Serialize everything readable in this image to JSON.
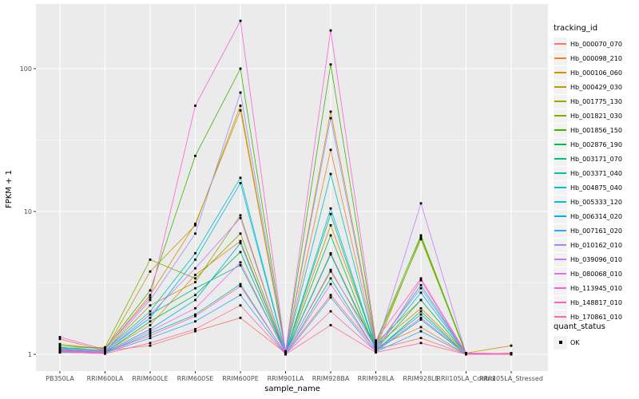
{
  "chart_data": {
    "type": "line",
    "xlabel": "sample_name",
    "ylabel": "FPKM + 1",
    "y_scale": "log10",
    "y_ticks": [
      1,
      10,
      100
    ],
    "y_minor_ticks": [
      3.162,
      31.62
    ],
    "grid": true,
    "panel_bg": "#EBEBEB",
    "grid_color": "#FFFFFF",
    "tick_label_color": "#4D4D4D",
    "point_shape": "square",
    "point_color": "#000000",
    "legend_position": "right",
    "categories": [
      "PB350LA",
      "RRIM600LA",
      "RRIM600LE",
      "RRIM600SE",
      "RRIM600PE",
      "RRIM901LA",
      "RRIM928BA",
      "RRIM928LA",
      "RRIM928LE",
      "RRII105LA_Control",
      "RRII105LA_Stressed"
    ],
    "series": [
      {
        "name": "Hb_000070_070",
        "color": "#F8766D",
        "values": [
          1.28,
          1.06,
          1.15,
          1.45,
          1.8,
          1.02,
          2.6,
          1.08,
          1.3,
          1.0,
          1.0
        ]
      },
      {
        "name": "Hb_000098_210",
        "color": "#EA8331",
        "values": [
          1.1,
          1.04,
          1.6,
          3.6,
          6.2,
          1.02,
          27.0,
          1.12,
          1.55,
          1.0,
          1.02
        ]
      },
      {
        "name": "Hb_000106_060",
        "color": "#D89000",
        "values": [
          1.18,
          1.08,
          2.6,
          8.2,
          51.0,
          1.04,
          8.0,
          1.15,
          2.1,
          1.02,
          1.15
        ]
      },
      {
        "name": "Hb_000429_030",
        "color": "#C09B00",
        "values": [
          1.12,
          1.06,
          3.8,
          8.0,
          55.0,
          1.03,
          50.0,
          1.2,
          2.4,
          1.01,
          1.0
        ]
      },
      {
        "name": "Hb_001775_130",
        "color": "#A3A500",
        "values": [
          1.08,
          1.05,
          2.2,
          3.2,
          9.4,
          1.02,
          5.1,
          1.1,
          6.6,
          1.0,
          1.0
        ]
      },
      {
        "name": "Hb_001821_030",
        "color": "#7CAE00",
        "values": [
          1.1,
          1.12,
          4.6,
          3.4,
          7.0,
          1.03,
          3.8,
          1.18,
          6.4,
          1.01,
          1.0
        ]
      },
      {
        "name": "Hb_001856_150",
        "color": "#39B600",
        "values": [
          1.15,
          1.1,
          2.8,
          24.5,
          100.0,
          1.05,
          107.0,
          1.22,
          6.8,
          1.02,
          1.01
        ]
      },
      {
        "name": "Hb_002876_190",
        "color": "#00BB4E",
        "values": [
          1.05,
          1.03,
          1.7,
          2.6,
          5.2,
          1.01,
          6.8,
          1.06,
          2.0,
          1.0,
          1.0
        ]
      },
      {
        "name": "Hb_003171_070",
        "color": "#00BF7D",
        "values": [
          1.07,
          1.04,
          1.9,
          2.9,
          4.2,
          1.02,
          9.6,
          1.08,
          2.4,
          1.01,
          1.0
        ]
      },
      {
        "name": "Hb_003371_040",
        "color": "#00C1A3",
        "values": [
          1.04,
          1.02,
          1.4,
          1.9,
          3.1,
          1.0,
          3.4,
          1.05,
          1.75,
          1.0,
          1.0
        ]
      },
      {
        "name": "Hb_004875_040",
        "color": "#00BFC4",
        "values": [
          1.12,
          1.06,
          2.0,
          5.1,
          17.2,
          1.03,
          18.3,
          1.12,
          3.05,
          1.01,
          1.0
        ]
      },
      {
        "name": "Hb_005333_120",
        "color": "#00BAE0",
        "values": [
          1.1,
          1.05,
          1.8,
          4.6,
          15.8,
          1.02,
          10.5,
          1.1,
          2.7,
          1.01,
          1.0
        ]
      },
      {
        "name": "Hb_006314_020",
        "color": "#00B0F6",
        "values": [
          1.06,
          1.03,
          1.5,
          2.4,
          6.0,
          1.01,
          5.0,
          1.07,
          1.9,
          1.0,
          1.0
        ]
      },
      {
        "name": "Hb_007161_020",
        "color": "#35A2FF",
        "values": [
          1.03,
          1.02,
          1.3,
          1.7,
          2.6,
          1.0,
          2.5,
          1.04,
          1.45,
          1.0,
          1.0
        ]
      },
      {
        "name": "Hb_010162_010",
        "color": "#9590FF",
        "values": [
          1.09,
          1.05,
          2.4,
          7.0,
          68.0,
          1.03,
          45.0,
          1.14,
          2.9,
          1.01,
          1.0
        ]
      },
      {
        "name": "Hb_039096_010",
        "color": "#C77CFF",
        "values": [
          1.08,
          1.04,
          1.9,
          4.0,
          9.0,
          1.02,
          3.9,
          1.1,
          11.4,
          1.01,
          1.0
        ]
      },
      {
        "name": "Hb_080068_010",
        "color": "#E76BF3",
        "values": [
          1.05,
          1.02,
          1.45,
          2.1,
          4.4,
          1.01,
          3.1,
          1.06,
          1.8,
          1.0,
          1.0
        ]
      },
      {
        "name": "Hb_113945_010",
        "color": "#FA62DB",
        "values": [
          1.32,
          1.08,
          2.5,
          55.0,
          216.0,
          1.04,
          185.0,
          1.25,
          3.4,
          1.02,
          1.01
        ]
      },
      {
        "name": "Hb_148817_010",
        "color": "#FF62BC",
        "values": [
          1.06,
          1.03,
          1.35,
          1.85,
          3.0,
          1.01,
          2.0,
          1.05,
          3.3,
          1.0,
          1.0
        ]
      },
      {
        "name": "Hb_170861_010",
        "color": "#FF6A98",
        "values": [
          1.04,
          1.01,
          1.2,
          1.5,
          2.2,
          1.0,
          1.6,
          1.03,
          1.2,
          1.0,
          1.0
        ]
      }
    ]
  },
  "legend": {
    "title": "tracking_id"
  },
  "legend2": {
    "title": "quant_status",
    "items": [
      {
        "label": "OK"
      }
    ]
  },
  "axes": {
    "x_title": "sample_name",
    "y_title": "FPKM + 1"
  }
}
